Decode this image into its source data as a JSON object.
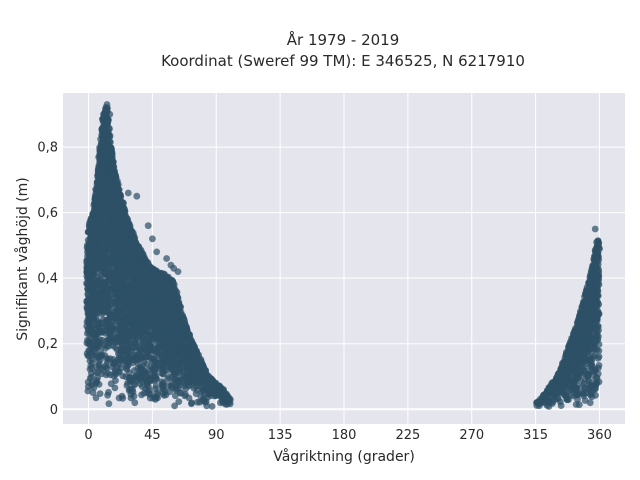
{
  "chart_data": {
    "type": "scatter",
    "title_lines": [
      "År 1979 - 2019",
      "Koordinat (Sweref 99 TM): E 346525, N 6217910"
    ],
    "xlabel": "Vågriktning (grader)",
    "ylabel": "Signifikant våghöjd (m)",
    "xlim": [
      -18,
      378
    ],
    "ylim": [
      -0.045,
      0.965
    ],
    "x_ticks": [
      0,
      45,
      90,
      135,
      180,
      225,
      270,
      315,
      360
    ],
    "x_tick_labels": [
      "0",
      "45",
      "90",
      "135",
      "180",
      "225",
      "270",
      "315",
      "360"
    ],
    "y_ticks": [
      0,
      0.2,
      0.4,
      0.6,
      0.8
    ],
    "y_tick_labels": [
      "0",
      "0,2",
      "0,4",
      "0,6",
      "0,8"
    ],
    "grid": true,
    "marker_color": "#2e5066",
    "background_color": "#e5e5ee",
    "envelope_a": {
      "x": [
        -1,
        0,
        3,
        6,
        8,
        10,
        11,
        12,
        13,
        14,
        16,
        18,
        20,
        23,
        26,
        30,
        35,
        40,
        45,
        50,
        55,
        60,
        65,
        70,
        75,
        80,
        85,
        90,
        95,
        98,
        100
      ],
      "y_max": [
        0.5,
        0.56,
        0.6,
        0.7,
        0.8,
        0.88,
        0.91,
        0.93,
        0.92,
        0.88,
        0.8,
        0.74,
        0.7,
        0.65,
        0.6,
        0.55,
        0.5,
        0.46,
        0.43,
        0.42,
        0.41,
        0.39,
        0.31,
        0.24,
        0.19,
        0.14,
        0.1,
        0.08,
        0.06,
        0.04,
        0.03
      ]
    },
    "envelope_b": {
      "x": [
        316,
        320,
        325,
        330,
        335,
        340,
        345,
        348,
        352,
        355,
        357,
        358,
        359,
        360
      ],
      "y_max": [
        0.02,
        0.04,
        0.07,
        0.1,
        0.15,
        0.21,
        0.27,
        0.32,
        0.38,
        0.44,
        0.48,
        0.5,
        0.52,
        0.5
      ]
    },
    "outliers": [
      {
        "x": 13,
        "y": 0.93
      },
      {
        "x": 15,
        "y": 0.9
      },
      {
        "x": 28,
        "y": 0.66
      },
      {
        "x": 34,
        "y": 0.65
      },
      {
        "x": 42,
        "y": 0.56
      },
      {
        "x": 45,
        "y": 0.52
      },
      {
        "x": 48,
        "y": 0.48
      },
      {
        "x": 55,
        "y": 0.46
      },
      {
        "x": 58,
        "y": 0.44
      },
      {
        "x": 60,
        "y": 0.43
      },
      {
        "x": 63,
        "y": 0.42
      },
      {
        "x": 357,
        "y": 0.55
      },
      {
        "x": 358,
        "y": 0.51
      },
      {
        "x": 360,
        "y": 0.49
      }
    ]
  }
}
